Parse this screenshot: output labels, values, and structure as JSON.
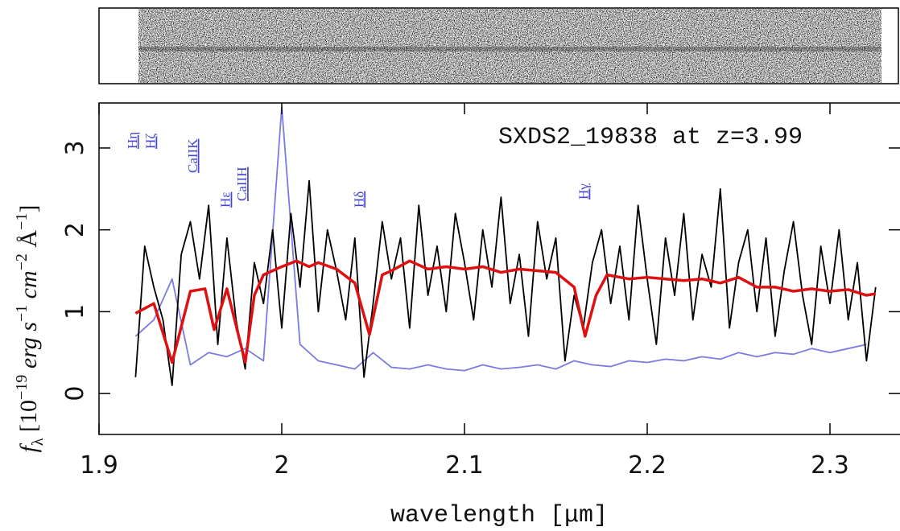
{
  "chart_data": {
    "type": "line",
    "annotation": "SXDS2_19838 at z=3.99",
    "xlabel": "wavelength [μm]",
    "ylabel": [
      "f",
      "λ",
      " [10",
      "−19",
      " erg s",
      "−1",
      " cm",
      "−2",
      " Å",
      "−1",
      "]"
    ],
    "xlim": [
      1.9,
      2.338
    ],
    "ylim": [
      -0.5,
      3.55
    ],
    "xticks": [
      1.9,
      2,
      2.1,
      2.2,
      2.3
    ],
    "yticks": [
      0,
      1,
      2,
      3
    ],
    "series": [
      {
        "color": "#7b7be0",
        "x": [
          1.92,
          1.93,
          1.94,
          1.95,
          1.96,
          1.97,
          1.98,
          1.99,
          2.0,
          2.01,
          2.02,
          2.03,
          2.04,
          2.05,
          2.06,
          2.07,
          2.08,
          2.09,
          2.1,
          2.11,
          2.12,
          2.13,
          2.14,
          2.15,
          2.16,
          2.17,
          2.18,
          2.19,
          2.2,
          2.21,
          2.22,
          2.23,
          2.24,
          2.25,
          2.26,
          2.27,
          2.28,
          2.29,
          2.3,
          2.31,
          2.32
        ],
        "values": [
          0.7,
          0.9,
          1.4,
          0.35,
          0.5,
          0.45,
          0.55,
          0.4,
          3.5,
          0.6,
          0.4,
          0.35,
          0.3,
          0.5,
          0.32,
          0.3,
          0.35,
          0.3,
          0.28,
          0.35,
          0.3,
          0.32,
          0.35,
          0.3,
          0.4,
          0.35,
          0.33,
          0.4,
          0.38,
          0.42,
          0.4,
          0.45,
          0.42,
          0.5,
          0.45,
          0.5,
          0.48,
          0.55,
          0.5,
          0.55,
          0.6
        ]
      },
      {
        "color": "#000000",
        "x": [
          1.92,
          1.925,
          1.93,
          1.935,
          1.94,
          1.945,
          1.95,
          1.955,
          1.96,
          1.965,
          1.97,
          1.975,
          1.98,
          1.985,
          1.99,
          1.995,
          2.0,
          2.005,
          2.01,
          2.015,
          2.02,
          2.025,
          2.03,
          2.035,
          2.04,
          2.045,
          2.05,
          2.055,
          2.06,
          2.065,
          2.07,
          2.075,
          2.08,
          2.085,
          2.09,
          2.095,
          2.1,
          2.105,
          2.11,
          2.115,
          2.12,
          2.125,
          2.13,
          2.135,
          2.14,
          2.145,
          2.15,
          2.155,
          2.16,
          2.165,
          2.17,
          2.175,
          2.18,
          2.185,
          2.19,
          2.195,
          2.2,
          2.205,
          2.21,
          2.215,
          2.22,
          2.225,
          2.23,
          2.235,
          2.24,
          2.245,
          2.25,
          2.255,
          2.26,
          2.265,
          2.27,
          2.275,
          2.28,
          2.285,
          2.29,
          2.295,
          2.3,
          2.305,
          2.31,
          2.315,
          2.32,
          2.325
        ],
        "values": [
          0.2,
          1.8,
          1.3,
          0.9,
          0.1,
          1.7,
          2.1,
          1.4,
          2.3,
          0.6,
          1.9,
          0.9,
          0.3,
          1.6,
          1.1,
          2.0,
          0.8,
          2.2,
          1.3,
          2.6,
          1.0,
          2.0,
          1.5,
          0.9,
          1.9,
          0.2,
          1.1,
          2.1,
          1.4,
          1.9,
          0.8,
          2.3,
          1.2,
          1.8,
          1.0,
          2.2,
          1.6,
          0.9,
          2.0,
          1.3,
          2.4,
          1.1,
          1.7,
          0.7,
          2.1,
          1.4,
          1.9,
          0.4,
          1.2,
          0.8,
          1.6,
          2.0,
          1.1,
          1.8,
          0.9,
          2.3,
          1.4,
          0.6,
          1.9,
          1.2,
          2.2,
          0.9,
          1.7,
          1.3,
          2.5,
          0.8,
          1.6,
          2.0,
          1.0,
          1.9,
          0.7,
          1.5,
          2.1,
          1.2,
          0.6,
          1.8,
          1.1,
          2.0,
          0.9,
          1.6,
          0.4,
          1.3
        ]
      },
      {
        "color": "#dd1111",
        "x": [
          1.92,
          1.93,
          1.94,
          1.95,
          1.958,
          1.963,
          1.97,
          1.98,
          1.985,
          1.99,
          2.0,
          2.008,
          2.015,
          2.02,
          2.03,
          2.04,
          2.048,
          2.055,
          2.06,
          2.07,
          2.08,
          2.09,
          2.1,
          2.11,
          2.12,
          2.13,
          2.14,
          2.15,
          2.16,
          2.166,
          2.172,
          2.178,
          2.19,
          2.2,
          2.21,
          2.22,
          2.23,
          2.24,
          2.25,
          2.26,
          2.27,
          2.28,
          2.29,
          2.3,
          2.31,
          2.32,
          2.325
        ],
        "values": [
          0.98,
          1.1,
          0.38,
          1.25,
          1.28,
          0.78,
          1.28,
          0.38,
          1.2,
          1.45,
          1.55,
          1.62,
          1.55,
          1.6,
          1.52,
          1.35,
          0.72,
          1.45,
          1.5,
          1.62,
          1.52,
          1.55,
          1.52,
          1.55,
          1.48,
          1.52,
          1.5,
          1.48,
          1.3,
          0.7,
          1.2,
          1.45,
          1.4,
          1.42,
          1.4,
          1.38,
          1.4,
          1.35,
          1.42,
          1.3,
          1.3,
          1.25,
          1.28,
          1.25,
          1.27,
          1.2,
          1.22
        ]
      }
    ],
    "line_labels": [
      {
        "label": "Hη",
        "x": 1.918
      },
      {
        "label": "Hζ",
        "x": 1.928
      },
      {
        "label": "CaIIK",
        "x": 1.951
      },
      {
        "label": "Hε",
        "x": 1.969
      },
      {
        "label": "CaIIH",
        "x": 1.978
      },
      {
        "label": "Hδ",
        "x": 2.042
      },
      {
        "label": "Hγ",
        "x": 2.165
      }
    ]
  }
}
